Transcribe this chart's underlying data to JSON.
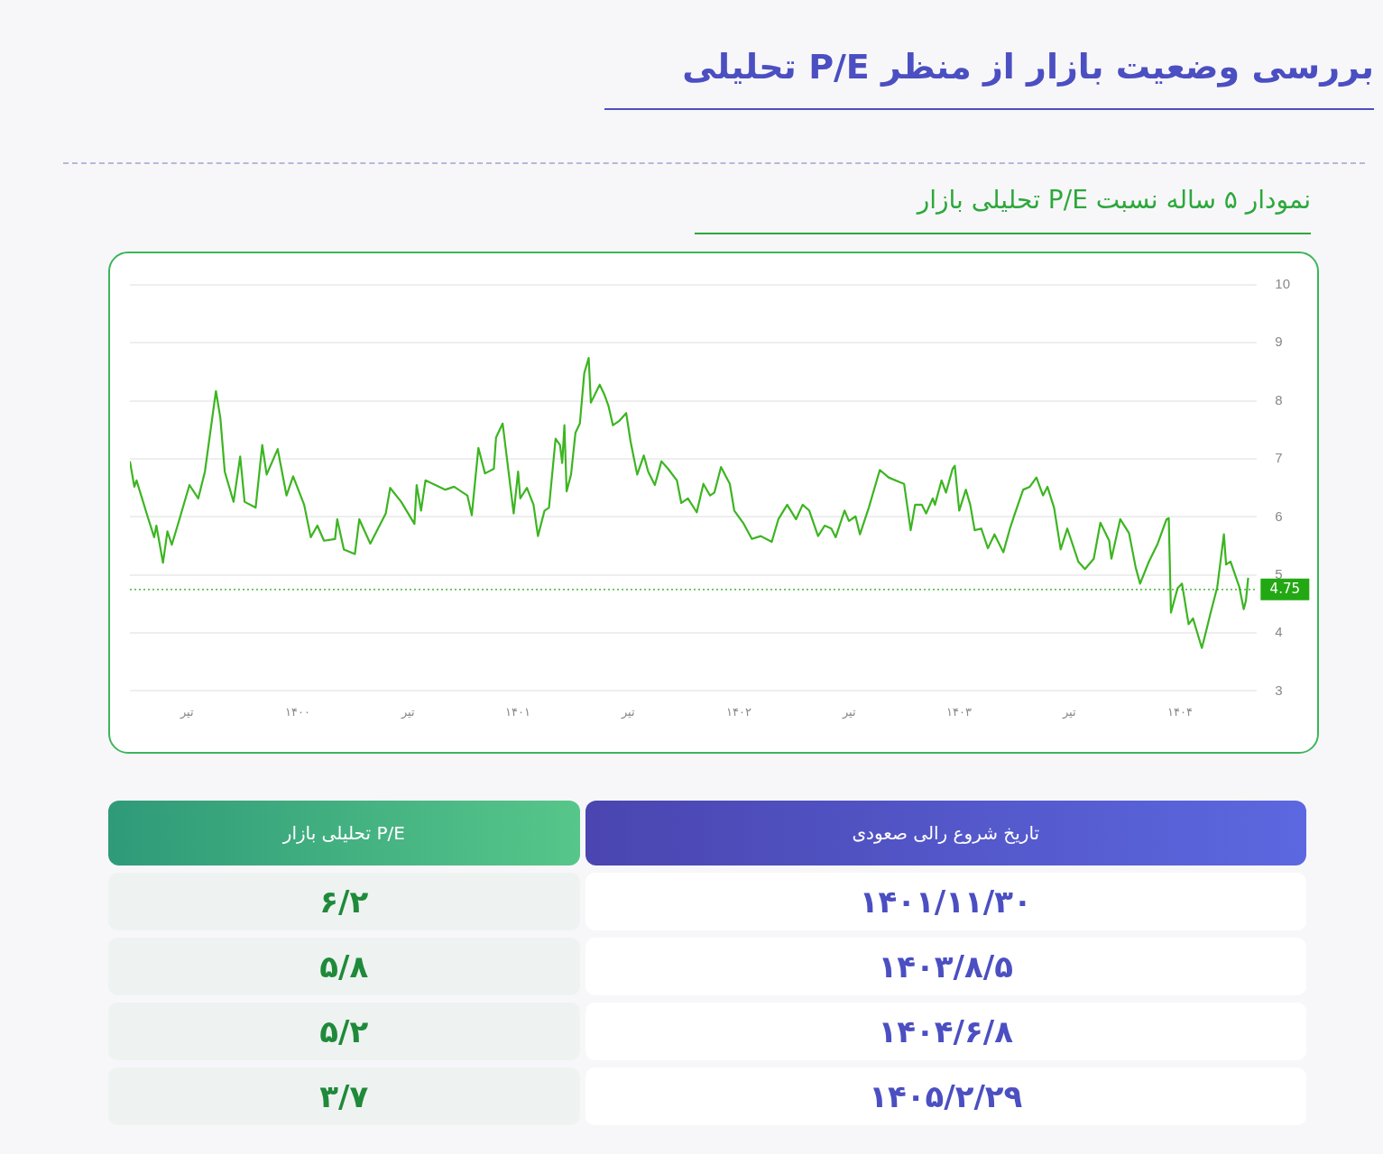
{
  "chart_data": {
    "type": "line",
    "title": "بررسی وضعیت بازار از منظر P/E تحلیلی",
    "subtitle": "نمودار ۵ ساله نسبت P/E تحلیلی بازار",
    "series": [
      {
        "color": "#3cb521",
        "x": [
          1399.24,
          1399.26,
          1399.27,
          1399.32,
          1399.35,
          1399.36,
          1399.39,
          1399.41,
          1399.43,
          1399.46,
          1399.51,
          1399.55,
          1399.58,
          1399.63,
          1399.65,
          1399.67,
          1399.71,
          1399.74,
          1399.76,
          1399.81,
          1399.84,
          1399.86,
          1399.91,
          1399.95,
          1399.98,
          1400.03,
          1400.06,
          1400.09,
          1400.12,
          1400.17,
          1400.18,
          1400.21,
          1400.26,
          1400.28,
          1400.33,
          1400.4,
          1400.42,
          1400.47,
          1400.53,
          1400.54,
          1400.56,
          1400.58,
          1400.67,
          1400.71,
          1400.77,
          1400.79,
          1400.82,
          1400.85,
          1400.89,
          1400.9,
          1400.93,
          1400.98,
          1401,
          1401.01,
          1401.04,
          1401.07,
          1401.09,
          1401.12,
          1401.14,
          1401.17,
          1401.19,
          1401.2,
          1401.21,
          1401.22,
          1401.24,
          1401.26,
          1401.28,
          1401.3,
          1401.32,
          1401.33,
          1401.37,
          1401.39,
          1401.41,
          1401.43,
          1401.46,
          1401.49,
          1401.51,
          1401.54,
          1401.57,
          1401.59,
          1401.62,
          1401.65,
          1401.68,
          1401.72,
          1401.74,
          1401.77,
          1401.81,
          1401.84,
          1401.87,
          1401.89,
          1401.92,
          1401.96,
          1401.98,
          1402.02,
          1402.06,
          1402.1,
          1402.15,
          1402.18,
          1402.22,
          1402.26,
          1402.29,
          1402.32,
          1402.36,
          1402.39,
          1402.42,
          1402.44,
          1402.48,
          1402.5,
          1402.53,
          1402.55,
          1402.59,
          1402.64,
          1402.68,
          1402.73,
          1402.75,
          1402.78,
          1402.8,
          1402.83,
          1402.85,
          1402.88,
          1402.89,
          1402.92,
          1402.94,
          1402.97,
          1402.98,
          1403,
          1403.03,
          1403.05,
          1403.07,
          1403.1,
          1403.13,
          1403.16,
          1403.2,
          1403.23,
          1403.25,
          1403.29,
          1403.32,
          1403.35,
          1403.38,
          1403.4,
          1403.43,
          1403.46,
          1403.49,
          1403.54,
          1403.57,
          1403.61,
          1403.64,
          1403.68,
          1403.69,
          1403.73,
          1403.77,
          1403.8,
          1403.82,
          1403.86,
          1403.9,
          1403.94,
          1403.95,
          1403.96,
          1403.99,
          1404.01,
          1404.04,
          1404.06,
          1404.1,
          1404.12,
          1404.14,
          1404.17,
          1404.2,
          1404.21,
          1404.23,
          1404.27,
          1404.29,
          1404.3,
          1404.31
        ],
        "values": [
          6.96,
          6.52,
          6.63,
          6.01,
          5.65,
          5.85,
          5.21,
          5.75,
          5.52,
          5.9,
          6.55,
          6.32,
          6.78,
          8.17,
          7.71,
          6.78,
          6.26,
          7.04,
          6.26,
          6.16,
          7.24,
          6.73,
          7.17,
          6.37,
          6.7,
          6.21,
          5.65,
          5.85,
          5.59,
          5.62,
          5.96,
          5.44,
          5.36,
          5.96,
          5.54,
          6.06,
          6.5,
          6.26,
          5.88,
          6.55,
          6.11,
          6.63,
          6.47,
          6.52,
          6.37,
          6.03,
          7.19,
          6.75,
          6.83,
          7.37,
          7.61,
          6.06,
          6.78,
          6.32,
          6.5,
          6.21,
          5.67,
          6.11,
          6.16,
          7.35,
          7.24,
          6.93,
          7.58,
          6.44,
          6.73,
          7.45,
          7.61,
          8.48,
          8.74,
          7.97,
          8.28,
          8.12,
          7.91,
          7.58,
          7.66,
          7.79,
          7.3,
          6.73,
          7.06,
          6.78,
          6.55,
          6.96,
          6.83,
          6.63,
          6.24,
          6.32,
          6.08,
          6.57,
          6.37,
          6.42,
          6.86,
          6.57,
          6.11,
          5.9,
          5.62,
          5.67,
          5.57,
          5.96,
          6.21,
          5.96,
          6.21,
          6.11,
          5.67,
          5.85,
          5.8,
          5.65,
          6.11,
          5.93,
          6.01,
          5.7,
          6.16,
          6.81,
          6.68,
          6.6,
          6.57,
          5.77,
          6.21,
          6.21,
          6.06,
          6.32,
          6.21,
          6.63,
          6.42,
          6.83,
          6.88,
          6.11,
          6.47,
          6.21,
          5.77,
          5.8,
          5.46,
          5.7,
          5.39,
          5.8,
          6.03,
          6.47,
          6.52,
          6.68,
          6.37,
          6.52,
          6.16,
          5.44,
          5.8,
          5.23,
          5.1,
          5.28,
          5.9,
          5.59,
          5.28,
          5.96,
          5.72,
          5.13,
          4.85,
          5.23,
          5.54,
          5.96,
          5.98,
          4.35,
          4.77,
          4.85,
          4.15,
          4.25,
          3.74,
          4.04,
          4.35,
          4.79,
          5.7,
          5.18,
          5.23,
          4.79,
          4.41,
          4.56,
          4.95
        ]
      }
    ],
    "xlim": [
      1399.24,
      1404.35
    ],
    "xticks": [
      {
        "value": 1399.5,
        "label": "تیر"
      },
      {
        "value": 1400,
        "label": "۱۴۰۰"
      },
      {
        "value": 1400.5,
        "label": "تیر"
      },
      {
        "value": 1401,
        "label": "۱۴۰۱"
      },
      {
        "value": 1401.5,
        "label": "تیر"
      },
      {
        "value": 1402,
        "label": "۱۴۰۲"
      },
      {
        "value": 1402.5,
        "label": "تیر"
      },
      {
        "value": 1403,
        "label": "۱۴۰۳"
      },
      {
        "value": 1403.5,
        "label": "تیر"
      },
      {
        "value": 1404,
        "label": "۱۴۰۴"
      }
    ],
    "ylim": [
      3,
      10
    ],
    "yticks": [
      3,
      4,
      5,
      6,
      7,
      8,
      9,
      10
    ],
    "grid": "y",
    "legend": false,
    "marker": "none",
    "line_style": "solid",
    "ref_lines": [
      {
        "axis": "y",
        "value": 4.75,
        "label": "4.75",
        "color": "#22a812",
        "line_style": "dotted"
      }
    ],
    "annotations": [
      "تاریخ شروع رالی صعودی",
      "P/E تحلیلی بازار",
      "۱۴۰۱/۱۱/۳۰",
      "۶/۲",
      "۱۴۰۳/۸/۵",
      "۵/۸",
      "۱۴۰۴/۶/۸",
      "۵/۲",
      "۱۴۰۵/۲/۲۹",
      "۳/۷"
    ]
  }
}
